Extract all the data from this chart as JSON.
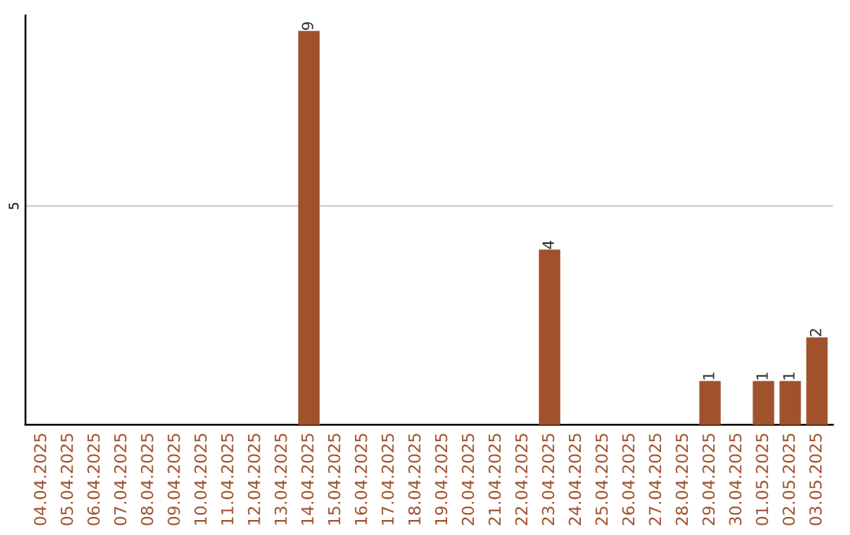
{
  "chart_data": {
    "type": "bar",
    "categories": [
      "04.04.2025",
      "05.04.2025",
      "06.04.2025",
      "07.04.2025",
      "08.04.2025",
      "09.04.2025",
      "10.04.2025",
      "11.04.2025",
      "12.04.2025",
      "13.04.2025",
      "14.04.2025",
      "15.04.2025",
      "16.04.2025",
      "17.04.2025",
      "18.04.2025",
      "19.04.2025",
      "20.04.2025",
      "21.04.2025",
      "22.04.2025",
      "23.04.2025",
      "24.04.2025",
      "25.04.2025",
      "26.04.2025",
      "27.04.2025",
      "28.04.2025",
      "29.04.2025",
      "30.04.2025",
      "01.05.2025",
      "02.05.2025",
      "03.05.2025"
    ],
    "values": [
      0,
      0,
      0,
      0,
      0,
      0,
      0,
      0,
      0,
      0,
      9,
      0,
      0,
      0,
      0,
      0,
      0,
      0,
      0,
      4,
      0,
      0,
      0,
      0,
      0,
      1,
      0,
      1,
      1,
      2
    ],
    "value_labels": [
      null,
      null,
      null,
      null,
      null,
      null,
      null,
      null,
      null,
      null,
      "9",
      null,
      null,
      null,
      null,
      null,
      null,
      null,
      null,
      "4",
      null,
      null,
      null,
      null,
      null,
      "1",
      null,
      "1",
      "1",
      "2"
    ],
    "color": "#a0522d",
    "ylim": [
      0,
      9.35
    ],
    "yticks": [
      5
    ],
    "grid": "y"
  }
}
